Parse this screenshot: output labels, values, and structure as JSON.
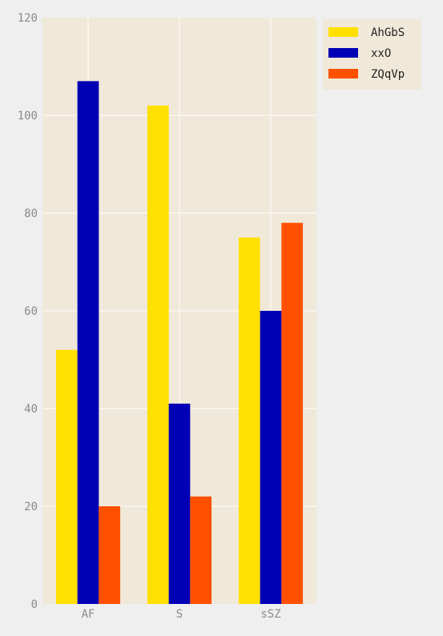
{
  "chart_data": {
    "type": "bar",
    "title": "",
    "xlabel": "",
    "ylabel": "",
    "categories": [
      "AF",
      "S",
      "sSZ"
    ],
    "series": [
      {
        "name": "AhGbS",
        "values": [
          52,
          102,
          75
        ]
      },
      {
        "name": "xxO",
        "values": [
          107,
          41,
          60
        ]
      },
      {
        "name": "ZQqVp",
        "values": [
          20,
          22,
          78
        ]
      }
    ],
    "ylim": [
      0,
      120
    ],
    "yticks": [
      0,
      20,
      40,
      60,
      80,
      100,
      120
    ],
    "grid": true,
    "legend_position": "top-right"
  },
  "colors": {
    "figure_bg": "#efefef",
    "plot_bg": "#f0e8d8",
    "grid": "#ffffff",
    "tick_text": "#8a8a8a",
    "series": [
      "#ffe000",
      "#0000b4",
      "#ff5000"
    ]
  }
}
